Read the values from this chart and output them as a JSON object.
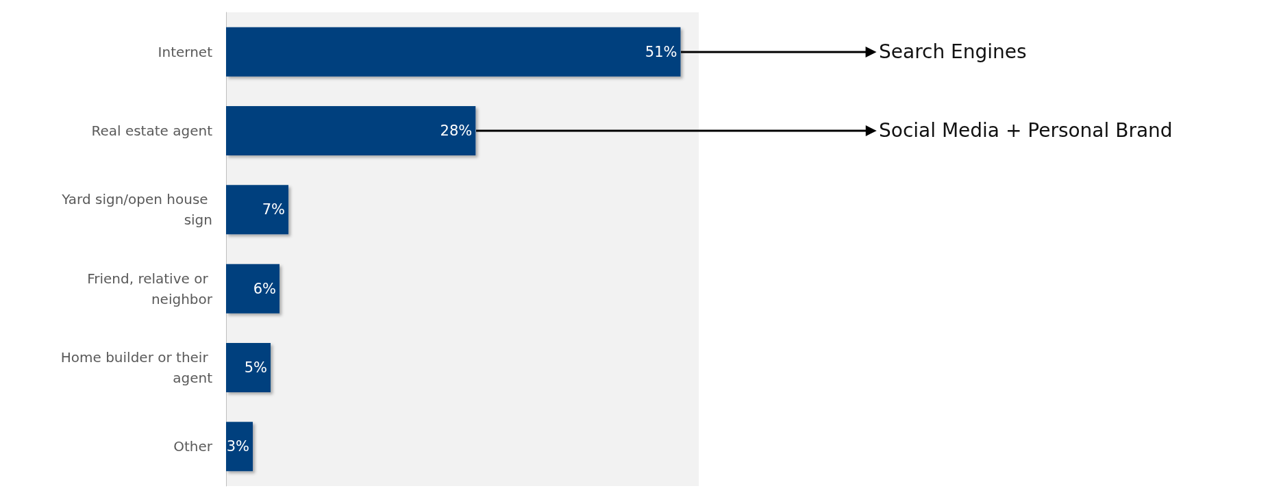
{
  "chart_data": {
    "type": "bar",
    "orientation": "horizontal",
    "categories": [
      "Internet",
      "Real estate agent",
      "Yard sign/open house sign",
      "Friend, relative or neighbor",
      "Home builder or their agent",
      "Other"
    ],
    "values": [
      51,
      28,
      7,
      6,
      5,
      3
    ],
    "color": "#00417e",
    "value_labels": [
      "51%",
      "28%",
      "7%",
      "6%",
      "5%",
      "3%"
    ],
    "annotations": [
      {
        "text": "Search Engines",
        "x": 51,
        "y": "Internet"
      },
      "Social Media + Personal Brand"
    ]
  }
}
